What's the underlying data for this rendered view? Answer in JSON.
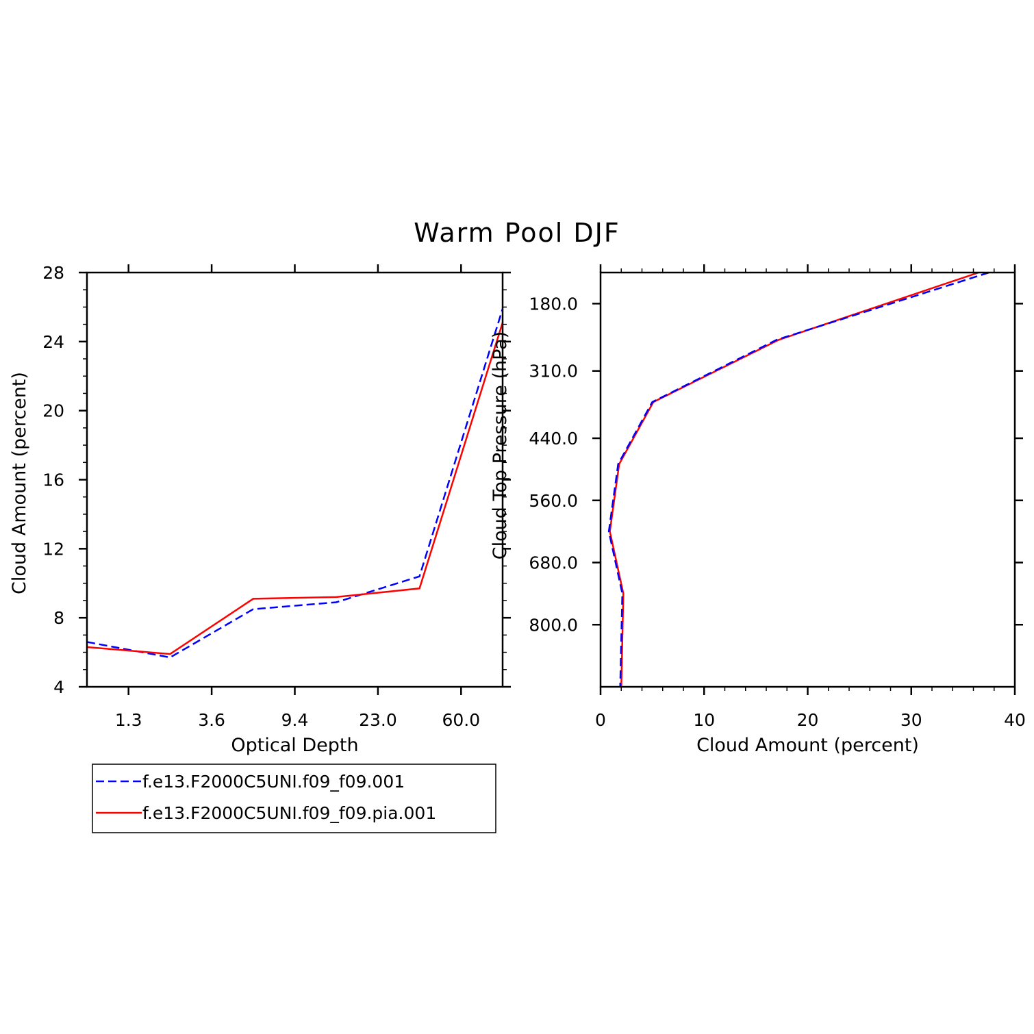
{
  "title": "Warm Pool DJF",
  "colors": {
    "series_a": "#0000ff",
    "series_b": "#ff0000",
    "axes": "#000000"
  },
  "legend": [
    {
      "label": "f.e13.F2000C5UNI.f09_f09.001",
      "style": "dashed",
      "color": "#0000ff"
    },
    {
      "label": "f.e13.F2000C5UNI.f09_f09.pia.001",
      "style": "solid",
      "color": "#ff0000"
    }
  ],
  "chart_data": [
    {
      "type": "line",
      "title": "Warm Pool DJF",
      "xlabel": "Optical Depth",
      "ylabel": "Cloud Amount (percent)",
      "x_tick_labels": [
        "1.3",
        "3.6",
        "9.4",
        "23.0",
        "60.0"
      ],
      "x_tick_positions": [
        0.5,
        1.5,
        2.5,
        3.5,
        4.5
      ],
      "xlim": [
        0,
        5
      ],
      "ylim": [
        4,
        28
      ],
      "y_ticks": [
        4,
        8,
        12,
        16,
        20,
        24,
        28
      ],
      "y_tick_labels": [
        "4",
        "8",
        "12",
        "16",
        "20",
        "24",
        "28"
      ],
      "x": [
        0,
        1,
        2,
        3,
        4,
        5
      ],
      "series": [
        {
          "name": "f.e13.F2000C5UNI.f09_f09.001",
          "values": [
            6.6,
            5.7,
            8.5,
            8.9,
            10.4,
            25.9
          ]
        },
        {
          "name": "f.e13.F2000C5UNI.f09_f09.pia.001",
          "values": [
            6.3,
            5.9,
            9.1,
            9.2,
            9.7,
            25.1
          ]
        }
      ]
    },
    {
      "type": "line",
      "title": "",
      "xlabel": "Cloud Amount (percent)",
      "ylabel": "Cloud Top Pressure (hPa)",
      "xlim": [
        0,
        40
      ],
      "x_ticks": [
        0,
        10,
        20,
        30,
        40
      ],
      "x_tick_labels": [
        "0",
        "10",
        "20",
        "30",
        "40"
      ],
      "ylim": [
        120,
        920
      ],
      "y_reversed": true,
      "y_ticks": [
        180,
        310,
        440,
        560,
        680,
        800
      ],
      "y_tick_labels": [
        "180.0",
        "310.0",
        "440.0",
        "560.0",
        "680.0",
        "800.0"
      ],
      "y": [
        120,
        250,
        370,
        490,
        620,
        740,
        920
      ],
      "series": [
        {
          "name": "f.e13.F2000C5UNI.f09_f09.001",
          "values": [
            37.5,
            17.0,
            5.0,
            1.7,
            0.8,
            2.1,
            1.9
          ]
        },
        {
          "name": "f.e13.F2000C5UNI.f09_f09.pia.001",
          "values": [
            36.5,
            17.2,
            5.1,
            1.8,
            0.9,
            2.2,
            2.0
          ]
        }
      ]
    }
  ]
}
